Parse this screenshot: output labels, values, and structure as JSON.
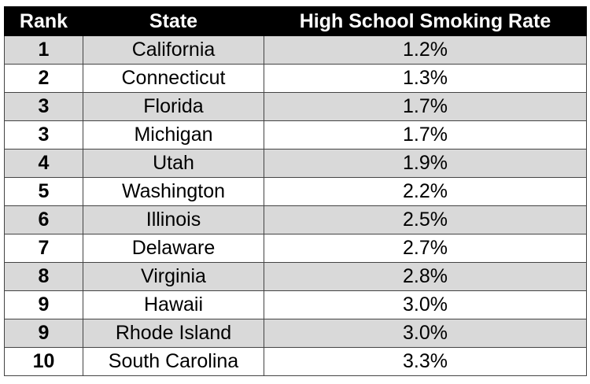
{
  "table": {
    "header": [
      "Rank",
      "State",
      "High School Smoking Rate"
    ],
    "rows": [
      [
        "1",
        "California",
        "1.2%"
      ],
      [
        "2",
        "Connecticut",
        "1.3%"
      ],
      [
        "3",
        "Florida",
        "1.7%"
      ],
      [
        "3",
        "Michigan",
        "1.7%"
      ],
      [
        "4",
        "Utah",
        "1.9%"
      ],
      [
        "5",
        "Washington",
        "2.2%"
      ],
      [
        "6",
        "Illinois",
        "2.5%"
      ],
      [
        "7",
        "Delaware",
        "2.7%"
      ],
      [
        "8",
        "Virginia",
        "2.8%"
      ],
      [
        "9",
        "Hawaii",
        "3.0%"
      ],
      [
        "9",
        "Rhode Island",
        "3.0%"
      ],
      [
        "10",
        "South Carolina",
        "3.3%"
      ]
    ]
  }
}
